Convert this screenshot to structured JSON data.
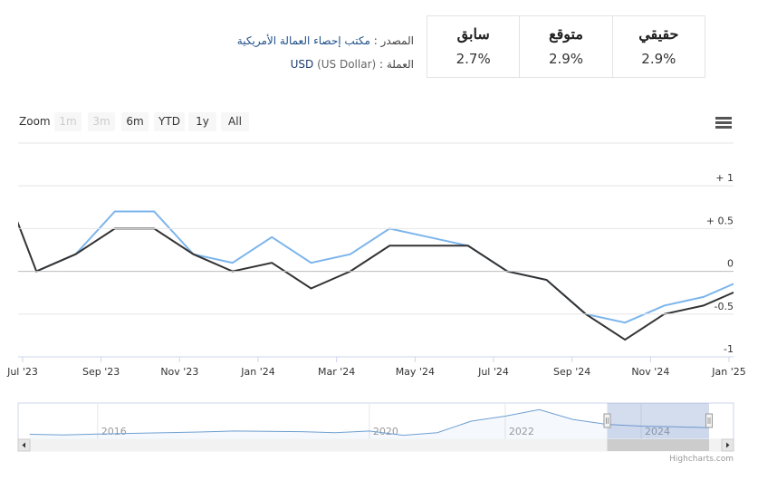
{
  "info": {
    "columns": [
      {
        "header": "حقيقي",
        "value": "2.9%"
      },
      {
        "header": "متوقع",
        "value": "2.9%"
      },
      {
        "header": "سابق",
        "value": "2.7%"
      }
    ],
    "source_label": "المصدر :",
    "source": "مكتب إحصاء العمالة الأمريكية",
    "currency_label": "العملة :",
    "currency_code": "USD",
    "currency_name": "(US Dollar)"
  },
  "chart_data": {
    "type": "line",
    "zoom_label": "Zoom",
    "range_buttons": [
      "1m",
      "3m",
      "6m",
      "YTD",
      "1y",
      "All"
    ],
    "x": [
      "2023-06",
      "2023-07",
      "2023-08",
      "2023-09",
      "2023-10",
      "2023-11",
      "2023-12",
      "2024-01",
      "2024-02",
      "2024-03",
      "2024-04",
      "2024-05",
      "2024-06",
      "2024-07",
      "2024-08",
      "2024-09",
      "2024-10",
      "2024-11",
      "2024-12",
      "2025-01"
    ],
    "series": [
      {
        "color": "#7cb5ec",
        "values": [
          null,
          0,
          0.2,
          0.7,
          0.7,
          0.2,
          0.1,
          0.4,
          0.1,
          0.2,
          0.5,
          0.4,
          0.3,
          0,
          -0.1,
          -0.5,
          -0.6,
          -0.4,
          -0.3,
          -0.1
        ]
      },
      {
        "color": "#333333",
        "values": [
          1.2,
          0,
          0.2,
          0.5,
          0.5,
          0.2,
          0,
          0.1,
          -0.2,
          0,
          0.3,
          0.3,
          0.3,
          0,
          -0.1,
          -0.5,
          -0.8,
          -0.5,
          -0.4,
          -0.2
        ]
      }
    ],
    "xlim": [
      "2023-07",
      "2025-01"
    ],
    "xticks": [
      {
        "value": "2023-07",
        "label": "Jul '23"
      },
      {
        "value": "2023-09",
        "label": "Sep '23"
      },
      {
        "value": "2023-11",
        "label": "Nov '23"
      },
      {
        "value": "2024-01",
        "label": "Jan '24"
      },
      {
        "value": "2024-03",
        "label": "Mar '24"
      },
      {
        "value": "2024-05",
        "label": "May '24"
      },
      {
        "value": "2024-07",
        "label": "Jul '24"
      },
      {
        "value": "2024-09",
        "label": "Sep '24"
      },
      {
        "value": "2024-11",
        "label": "Nov '24"
      },
      {
        "value": "2025-01",
        "label": "Jan '25"
      }
    ],
    "ylim": [
      -1,
      1.5
    ],
    "yticks": [
      {
        "value": 1,
        "label": "+ 1"
      },
      {
        "value": 0.5,
        "label": "+ 0.5"
      },
      0,
      -0.5,
      -1
    ],
    "grid": true,
    "navigator": {
      "x": [
        2015,
        2015.5,
        2016,
        2016.5,
        2017,
        2017.5,
        2018,
        2018.5,
        2019,
        2019.5,
        2020,
        2020.5,
        2021,
        2021.5,
        2022,
        2022.5,
        2023,
        2023.5,
        2024,
        2024.5,
        2025
      ],
      "values": [
        1.5,
        1.3,
        1.6,
        1.8,
        2.0,
        2.2,
        2.5,
        2.4,
        2.3,
        2.0,
        2.5,
        1.2,
        2.0,
        5.5,
        7.0,
        9.0,
        6.0,
        4.5,
        4.0,
        3.8,
        3.5
      ],
      "xlim": [
        2014.83,
        2025.36
      ],
      "ylim": [
        0,
        11
      ],
      "xticks": [
        2016,
        2020,
        2022,
        2024
      ],
      "color": "#6f9fd0"
    },
    "credit": "Highcharts.com"
  }
}
